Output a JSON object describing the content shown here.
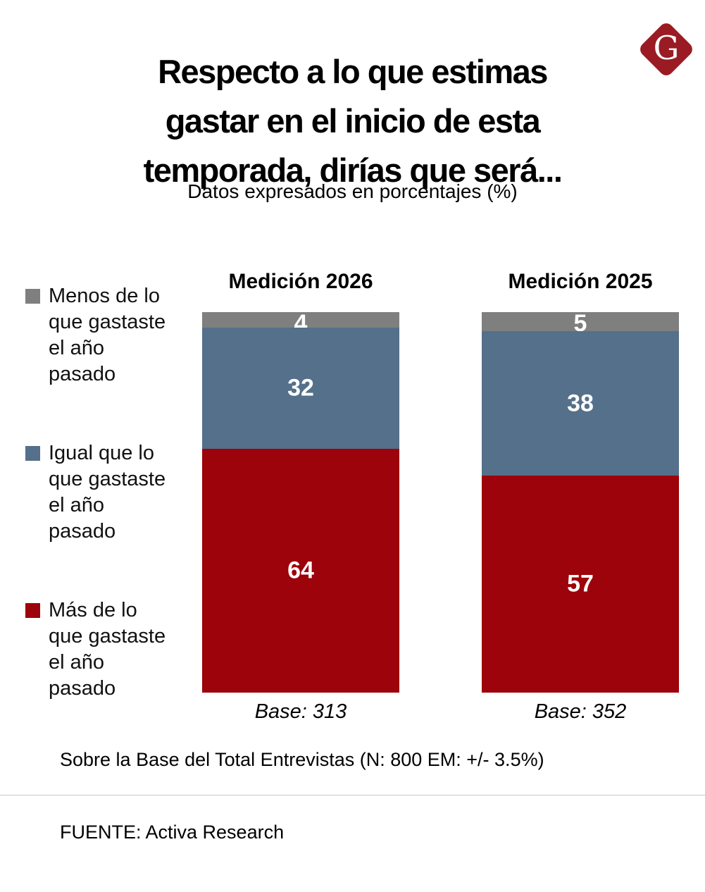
{
  "brand": {
    "letter": "G",
    "logo_color": "#9a1b24"
  },
  "chart_data": {
    "type": "bar",
    "stacked": true,
    "orientation": "vertical",
    "title": "Respecto a lo que estimas\ngastar en el inicio de esta\ntemporada, dirías que será...",
    "subtitle": "Datos expresados en porcentajes (%)",
    "categories": [
      "Medición 2026",
      "Medición 2025"
    ],
    "series": [
      {
        "name": "Menos de lo que gastaste el año pasado",
        "color": "#7f7f7f",
        "label_color": "#ffffff",
        "values": [
          4,
          5
        ]
      },
      {
        "name": "Igual que lo que gastaste el año pasado",
        "color": "#54708a",
        "label_color": "#ffffff",
        "values": [
          32,
          38
        ]
      },
      {
        "name": "Más de lo que gastaste el año pasado",
        "color": "#9c030a",
        "label_color": "#ffffff",
        "values": [
          64,
          57
        ]
      }
    ],
    "base_labels": [
      "Base: 313",
      "Base: 352"
    ],
    "unit": "%",
    "ylim": [
      0,
      100
    ],
    "grid": false,
    "legend_position": "left"
  },
  "legend": {
    "items": [
      {
        "label": "Menos de lo\nque gastaste\nel año\npasado",
        "color": "#7f7f7f"
      },
      {
        "label": "Igual que lo\nque gastaste\nel año\npasado",
        "color": "#54708a"
      },
      {
        "label": "Más de lo\nque gastaste\nel año\npasado",
        "color": "#9c030a"
      }
    ]
  },
  "footer": {
    "note": "Sobre la Base del Total Entrevistas (N: 800 EM: +/- 3.5%)",
    "source": "FUENTE: Activa Research"
  }
}
